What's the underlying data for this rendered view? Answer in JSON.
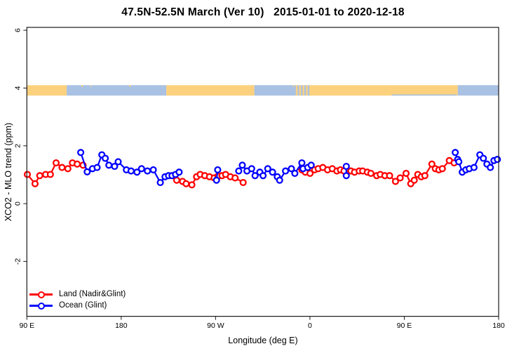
{
  "title": "47.5N-52.5N March (Ver 10)   2015-01-01 to 2020-12-18",
  "colors": {
    "land": "#ff0000",
    "ocean": "#0000ff",
    "band_land": "#fcd17e",
    "band_ocean": "#a9c1e2",
    "axis": "#1a1a1a",
    "background": "#ffffff"
  },
  "legend": {
    "items": [
      {
        "key": "land",
        "label": "Land (Nadir&Glint)"
      },
      {
        "key": "ocean",
        "label": "Ocean (Glint)"
      }
    ]
  },
  "chart_data": {
    "type": "line",
    "title": "47.5N-52.5N March (Ver 10)   2015-01-01 to 2020-12-18",
    "xlabel": "Longitude (deg E)",
    "ylabel": "XCO2 - MLO trend (ppm)",
    "grid": false,
    "legend_position": "bottom-left-inside",
    "x_axis": {
      "range": [
        90,
        540
      ],
      "ticks": [
        90,
        180,
        270,
        360,
        450,
        540
      ],
      "tick_labels": [
        "90 E",
        "180",
        "90 W",
        "0",
        "90 E",
        "180"
      ]
    },
    "y_axis": {
      "range": [
        -3.9,
        6.1
      ],
      "ticks": [
        -2,
        0,
        2,
        4,
        6
      ],
      "tick_labels": [
        "-2",
        "0",
        "2",
        "4",
        "6"
      ]
    },
    "surface_band": {
      "comment": "horizontal strip near y=4 showing land(orange)/ocean(blue) surface type vs longitude",
      "y_top": 4.1,
      "y_bottom": 3.74,
      "segments": [
        {
          "from": 90,
          "to": 128,
          "type": "land"
        },
        {
          "from": 128,
          "to": 223,
          "type": "ocean"
        },
        {
          "from": 223,
          "to": 307,
          "type": "land"
        },
        {
          "from": 307,
          "to": 345,
          "type": "ocean"
        },
        {
          "from": 345,
          "to": 361,
          "type": "mixed"
        },
        {
          "from": 361,
          "to": 501,
          "type": "land"
        },
        {
          "from": 501,
          "to": 540,
          "type": "ocean"
        }
      ],
      "land_specks_top": [
        {
          "deg": 142.0,
          "w": 1.5
        },
        {
          "deg": 150.5,
          "w": 1.0
        },
        {
          "deg": 187.5,
          "w": 1.5
        },
        {
          "deg": 344.0,
          "w": 1.2
        }
      ],
      "ocean_sliver_bottom": {
        "from": 438,
        "to": 500
      }
    },
    "gap_break_deg": 8,
    "series": [
      {
        "name": "Land (Nadir&Glint)",
        "color_key": "land",
        "points": [
          [
            90.5,
            1.01
          ],
          [
            97.8,
            0.69
          ],
          [
            102.3,
            0.97
          ],
          [
            107.9,
            1.01
          ],
          [
            112.4,
            1.01
          ],
          [
            117.9,
            1.41
          ],
          [
            123.5,
            1.25
          ],
          [
            129.1,
            1.21
          ],
          [
            133.5,
            1.41
          ],
          [
            138.0,
            1.37
          ],
          [
            143.6,
            1.33
          ],
          [
            232.9,
            0.81
          ],
          [
            238.5,
            0.77
          ],
          [
            241.9,
            0.69
          ],
          [
            247.4,
            0.65
          ],
          [
            251.9,
            0.93
          ],
          [
            255.3,
            1.01
          ],
          [
            259.7,
            0.97
          ],
          [
            264.2,
            0.93
          ],
          [
            268.7,
            0.89
          ],
          [
            272.2,
            0.95
          ],
          [
            276.2,
            0.97
          ],
          [
            279.6,
            1.01
          ],
          [
            284.1,
            0.93
          ],
          [
            288.6,
            0.89
          ],
          [
            296.3,
            0.73
          ],
          [
            352.3,
            1.17
          ],
          [
            355.6,
            1.09
          ],
          [
            360.1,
            1.05
          ],
          [
            364.5,
            1.17
          ],
          [
            367.9,
            1.21
          ],
          [
            372.3,
            1.25
          ],
          [
            376.8,
            1.17
          ],
          [
            381.3,
            1.21
          ],
          [
            385.7,
            1.13
          ],
          [
            389.1,
            1.17
          ],
          [
            392.5,
            1.13
          ],
          [
            399.1,
            1.13
          ],
          [
            402.5,
            1.09
          ],
          [
            407.0,
            1.13
          ],
          [
            410.3,
            1.13
          ],
          [
            414.8,
            1.09
          ],
          [
            418.1,
            1.05
          ],
          [
            423.7,
            0.97
          ],
          [
            427.1,
            1.01
          ],
          [
            431.5,
            0.97
          ],
          [
            436.0,
            0.97
          ],
          [
            441.6,
            0.77
          ],
          [
            446.1,
            0.89
          ],
          [
            451.7,
            1.05
          ],
          [
            456.2,
            0.69
          ],
          [
            459.5,
            0.81
          ],
          [
            462.9,
            1.01
          ],
          [
            466.2,
            0.93
          ],
          [
            469.6,
            0.97
          ],
          [
            476.3,
            1.37
          ],
          [
            479.6,
            1.21
          ],
          [
            483.0,
            1.17
          ],
          [
            486.3,
            1.21
          ],
          [
            493.0,
            1.49
          ],
          [
            497.5,
            1.41
          ]
        ]
      },
      {
        "name": "Ocean (Glint)",
        "color_key": "ocean",
        "points": [
          [
            141.4,
            1.77
          ],
          [
            147.5,
            1.1
          ],
          [
            152.6,
            1.21
          ],
          [
            157.0,
            1.25
          ],
          [
            161.5,
            1.69
          ],
          [
            164.8,
            1.57
          ],
          [
            168.2,
            1.33
          ],
          [
            173.7,
            1.29
          ],
          [
            177.1,
            1.45
          ],
          [
            184.9,
            1.17
          ],
          [
            189.4,
            1.13
          ],
          [
            195.0,
            1.09
          ],
          [
            199.4,
            1.21
          ],
          [
            205.0,
            1.13
          ],
          [
            210.6,
            1.17
          ],
          [
            217.3,
            0.73
          ],
          [
            221.8,
            0.93
          ],
          [
            225.1,
            0.97
          ],
          [
            228.5,
            0.97
          ],
          [
            231.8,
            1.01
          ],
          [
            235.2,
            1.09
          ],
          [
            270.9,
            0.81
          ],
          [
            272.0,
            1.17
          ],
          [
            292.1,
            1.13
          ],
          [
            295.5,
            1.33
          ],
          [
            299.9,
            1.13
          ],
          [
            304.4,
            1.21
          ],
          [
            307.7,
            0.97
          ],
          [
            312.2,
            1.09
          ],
          [
            315.3,
            0.97
          ],
          [
            319.8,
            1.21
          ],
          [
            324.3,
            1.09
          ],
          [
            328.9,
            0.93
          ],
          [
            331.1,
            0.81
          ],
          [
            336.7,
            1.13
          ],
          [
            342.3,
            1.21
          ],
          [
            345.6,
            1.05
          ],
          [
            352.3,
            1.41
          ],
          [
            353.4,
            1.21
          ],
          [
            357.9,
            1.25
          ],
          [
            361.2,
            1.33
          ],
          [
            394.7,
            1.29
          ],
          [
            394.7,
            0.97
          ],
          [
            498.6,
            1.77
          ],
          [
            500.9,
            1.53
          ],
          [
            502.0,
            1.45
          ],
          [
            505.3,
            1.09
          ],
          [
            508.7,
            1.17
          ],
          [
            512.0,
            1.21
          ],
          [
            516.5,
            1.25
          ],
          [
            522.1,
            1.69
          ],
          [
            525.4,
            1.57
          ],
          [
            528.8,
            1.37
          ],
          [
            532.1,
            1.25
          ],
          [
            535.5,
            1.49
          ],
          [
            538.8,
            1.53
          ]
        ]
      }
    ]
  }
}
